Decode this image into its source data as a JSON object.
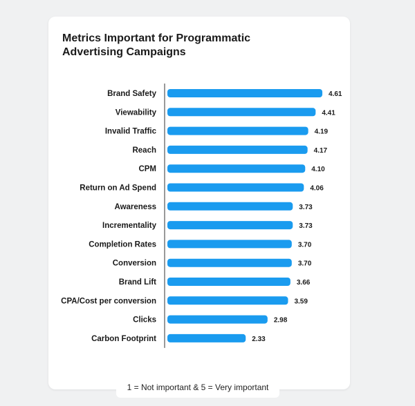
{
  "chart_data": {
    "type": "bar",
    "orientation": "horizontal",
    "title": "Metrics Important for Programmatic Advertising Campaigns",
    "categories": [
      "Brand Safety",
      "Viewability",
      "Invalid Traffic",
      "Reach",
      "CPM",
      "Return on Ad Spend",
      "Awareness",
      "Incrementality",
      "Completion Rates",
      "Conversion",
      "Brand Lift",
      "CPA/Cost per conversion",
      "Clicks",
      "Carbon Footprint"
    ],
    "values": [
      4.61,
      4.41,
      4.19,
      4.17,
      4.1,
      4.06,
      3.73,
      3.73,
      3.7,
      3.7,
      3.66,
      3.59,
      2.98,
      2.33
    ],
    "value_labels": [
      "4.61",
      "4.41",
      "4.19",
      "4.17",
      "4.10",
      "4.06",
      "3.73",
      "3.73",
      "3.70",
      "3.70",
      "3.66",
      "3.59",
      "2.98",
      "2.33"
    ],
    "xlim": [
      0,
      5
    ],
    "bar_color": "#1a9bef",
    "grid": false,
    "note": "1 = Not important & 5 = Very important"
  }
}
